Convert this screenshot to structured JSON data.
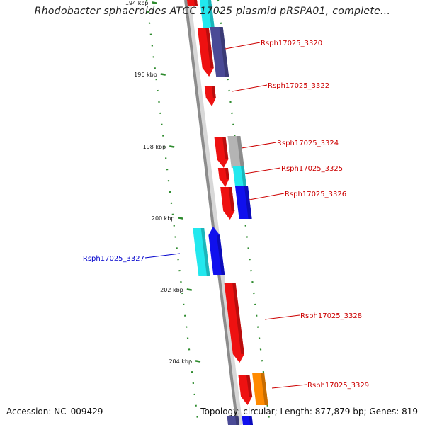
{
  "title": "Rhodobacter sphaeroides ATCC 17025 plasmid pRSPA01, complete...",
  "footer": {
    "accession": "Accession: NC_009429",
    "summary": "Topology: circular; Length: 877,879 bp; Genes: 819"
  },
  "scale": {
    "unit": "kbp",
    "ticks": [
      "194 kbp",
      "196 kbp",
      "198 kbp",
      "200 kbp",
      "202 kbp",
      "204 kbp"
    ]
  },
  "genes": [
    {
      "label": "Rsph17025_3320",
      "strand": "+"
    },
    {
      "label": "Rsph17025_3322",
      "strand": "+"
    },
    {
      "label": "Rsph17025_3324",
      "strand": "+"
    },
    {
      "label": "Rsph17025_3325",
      "strand": "+"
    },
    {
      "label": "Rsph17025_3326",
      "strand": "+"
    },
    {
      "label": "Rsph17025_3327",
      "strand": "-"
    },
    {
      "label": "Rsph17025_3328",
      "strand": "+"
    },
    {
      "label": "Rsph17025_3329",
      "strand": "+"
    }
  ],
  "colors": {
    "backbone": "#8c8c8c",
    "tick": "#2e8b2e",
    "label_forward": "#cc0000",
    "label_reverse": "#0000cc",
    "cds_red": "#ee1111",
    "cds_cyan": "#22e8ee",
    "cds_slate": "#4a4a96",
    "cds_grey": "#b4b4b4",
    "cds_blue": "#1010ee",
    "cds_orange": "#ff8a00"
  }
}
